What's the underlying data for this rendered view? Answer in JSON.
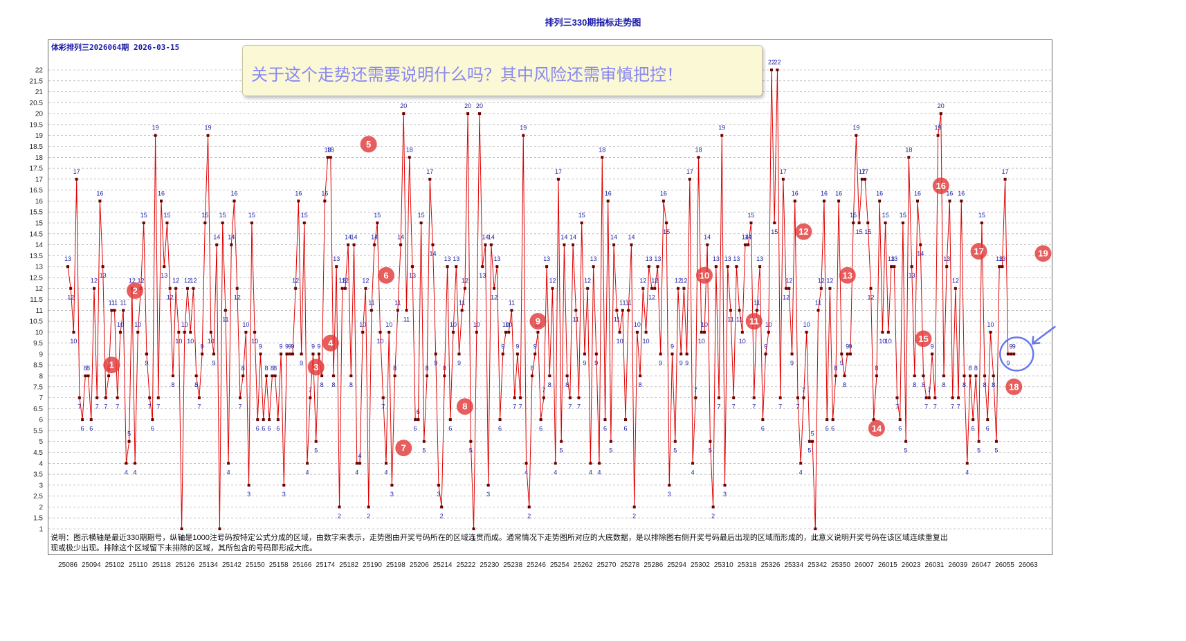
{
  "title": "排列三330期指标走势图",
  "subtitle": "体彩排列三2026064期  2026-03-15",
  "banner": "关于这个走势还需要说明什么吗？其中风险还需审慎把控！",
  "note": "说明：图示横轴是最近330期期号，纵轴是1000注号码按特定公式分成的区域，由数字来表示，走势图由开奖号码所在的区域连贯而成。通常情况下走势图所对应的大底数据，是以排除图右侧开奖号码最后出现的区域而形成的，此意义说明开奖号码在该区域连续重复出现或极少出现。排除这个区域留下未排除的区域，其所包含的号码即形成大底。",
  "colors": {
    "line": "#e00000",
    "marker": "#6b0000",
    "label": "#1a1aa6",
    "badge": "#e23a3a",
    "highlight": "#6677ee"
  },
  "chart_data": {
    "type": "line",
    "ylim": [
      1,
      22
    ],
    "yticks": [
      "1",
      "1.5",
      "2",
      "2.5",
      "3",
      "3.5",
      "4",
      "4.5",
      "5",
      "5.5",
      "6",
      "6.5",
      "7",
      "7.5",
      "8",
      "8.5",
      "9",
      "9.5",
      "10",
      "10.5",
      "11",
      "11.5",
      "12",
      "12.5",
      "13",
      "13.5",
      "14",
      "14.5",
      "15",
      "15.5",
      "16",
      "16.5",
      "17",
      "17.5",
      "18",
      "18.5",
      "19",
      "19.5",
      "20",
      "20.5",
      "21",
      "21.5",
      "22"
    ],
    "x_tick_labels": [
      "25086",
      "25094",
      "25102",
      "25110",
      "25118",
      "25126",
      "25134",
      "25142",
      "25150",
      "25158",
      "25166",
      "25174",
      "25182",
      "25190",
      "25198",
      "25206",
      "25214",
      "25222",
      "25230",
      "25238",
      "25246",
      "25254",
      "25262",
      "25270",
      "25278",
      "25286",
      "25294",
      "25302",
      "25310",
      "25318",
      "25326",
      "25334",
      "25342",
      "25350",
      "26007",
      "26015",
      "26023",
      "26031",
      "26039",
      "26047",
      "26055",
      "26063"
    ],
    "values": [
      13,
      12,
      10,
      17,
      7,
      6,
      8,
      8,
      6,
      12,
      7,
      16,
      13,
      7,
      8,
      11,
      11,
      7,
      10,
      11,
      4,
      5,
      12,
      4,
      10,
      12,
      15,
      9,
      7,
      6,
      19,
      7,
      16,
      13,
      15,
      12,
      8,
      12,
      10,
      1,
      10,
      12,
      10,
      12,
      8,
      7,
      9,
      15,
      19,
      10,
      9,
      14,
      1,
      15,
      11,
      4,
      14,
      16,
      12,
      7,
      8,
      10,
      3,
      15,
      10,
      6,
      9,
      6,
      8,
      6,
      8,
      8,
      6,
      9,
      3,
      9,
      9,
      9,
      12,
      16,
      9,
      15,
      4,
      7,
      9,
      5,
      9,
      8,
      16,
      18,
      18,
      8,
      13,
      2,
      12,
      12,
      14,
      8,
      14,
      4,
      4,
      10,
      12,
      2,
      11,
      14,
      15,
      10,
      7,
      4,
      10,
      3,
      8,
      11,
      14,
      20,
      11,
      18,
      13,
      6,
      6,
      15,
      5,
      8,
      17,
      14,
      9,
      3,
      2,
      8,
      13,
      6,
      10,
      13,
      9,
      11,
      12,
      20,
      5,
      1,
      10,
      20,
      13,
      14,
      3,
      14,
      12,
      13,
      6,
      9,
      10,
      10,
      11,
      7,
      9,
      7,
      19,
      4,
      2,
      8,
      9,
      10,
      6,
      7,
      13,
      8,
      12,
      4,
      17,
      5,
      14,
      8,
      7,
      14,
      11,
      7,
      15,
      9,
      12,
      4,
      13,
      9,
      4,
      18,
      6,
      16,
      5,
      14,
      11,
      10,
      11,
      6,
      11,
      14,
      2,
      10,
      8,
      12,
      10,
      13,
      12,
      12,
      13,
      9,
      16,
      15,
      3,
      9,
      5,
      12,
      9,
      12,
      9,
      17,
      4,
      7,
      18,
      10,
      10,
      14,
      5,
      2,
      13,
      7,
      19,
      3,
      13,
      11,
      7,
      13,
      11,
      10,
      14,
      14,
      15,
      7,
      11,
      13,
      6,
      9,
      10,
      22,
      15,
      22,
      7,
      17,
      12,
      12,
      9,
      16,
      7,
      4,
      7,
      10,
      5,
      5,
      1,
      11,
      12,
      16,
      6,
      12,
      6,
      8,
      16,
      9,
      8,
      9,
      9,
      15,
      19,
      15,
      17,
      17,
      15,
      12,
      6,
      8,
      16,
      10,
      15,
      10,
      13,
      13,
      7,
      6,
      15,
      5,
      18,
      13,
      8,
      16,
      14,
      8,
      7,
      7,
      9,
      7,
      19,
      20,
      8,
      13,
      16,
      7,
      12,
      7,
      16,
      8,
      4,
      8,
      6,
      8,
      5,
      15,
      8,
      6,
      10,
      8,
      5,
      13,
      13,
      17,
      9,
      9,
      9
    ],
    "badges": [
      {
        "num": "1",
        "x": 25101,
        "y": 8.5
      },
      {
        "num": "2",
        "x": 25109,
        "y": 11.9
      },
      {
        "num": "3",
        "x": 25171,
        "y": 8.4
      },
      {
        "num": "4",
        "x": 25176,
        "y": 9.5
      },
      {
        "num": "5",
        "x": 25189,
        "y": 18.6
      },
      {
        "num": "6",
        "x": 25195,
        "y": 12.6
      },
      {
        "num": "7",
        "x": 25201,
        "y": 4.7
      },
      {
        "num": "8",
        "x": 25222,
        "y": 6.6
      },
      {
        "num": "9",
        "x": 25247,
        "y": 10.5
      },
      {
        "num": "10",
        "x": 25304,
        "y": 12.6
      },
      {
        "num": "11",
        "x": 25321,
        "y": 10.5
      },
      {
        "num": "12",
        "x": 25338,
        "y": 14.6
      },
      {
        "num": "13",
        "x": 25353,
        "y": 12.6
      },
      {
        "num": "14",
        "x": 25363,
        "y": 5.6
      },
      {
        "num": "15",
        "x": 25379,
        "y": 9.7
      },
      {
        "num": "16",
        "x": 25385,
        "y": 16.7
      },
      {
        "num": "17",
        "x": 25398,
        "y": 13.7
      },
      {
        "num": "18",
        "x": 25410,
        "y": 7.5
      },
      {
        "num": "19",
        "x": 25420,
        "y": 13.6
      }
    ]
  }
}
